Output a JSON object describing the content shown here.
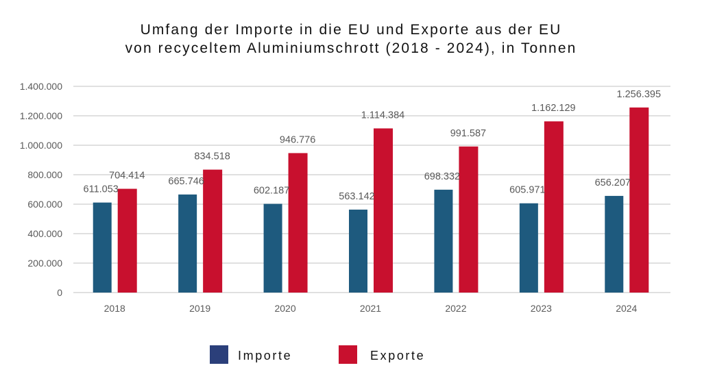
{
  "chart_data": {
    "type": "bar",
    "title_lines": [
      "Umfang der Importe in die EU und Exporte aus der EU",
      "von recyceltem Aluminiumschrott (2018 - 2024), in Tonnen"
    ],
    "xlabel": "",
    "ylabel": "",
    "categories": [
      "2018",
      "2019",
      "2020",
      "2021",
      "2022",
      "2023",
      "2024"
    ],
    "ylim": [
      0,
      1400000
    ],
    "yticks": [
      0,
      200000,
      400000,
      600000,
      800000,
      1000000,
      1200000,
      1400000
    ],
    "ytick_labels": [
      "0",
      "200.000",
      "400.000",
      "600.000",
      "800.000",
      "1.000.000",
      "1.200.000",
      "1.400.000"
    ],
    "grid": true,
    "legend_position": "bottom",
    "series": [
      {
        "name": "Importe",
        "color": "#1e5a7e",
        "legend_color": "#2b3f7a",
        "values": [
          611053,
          665746,
          602187,
          563142,
          698332,
          605971,
          656207
        ],
        "labels": [
          "611.053",
          "665.746",
          "602.187",
          "563.142",
          "698.332",
          "605.971",
          "656.207"
        ]
      },
      {
        "name": "Exporte",
        "color": "#c8102e",
        "legend_color": "#c8102e",
        "values": [
          704414,
          834518,
          946776,
          1114384,
          991587,
          1162129,
          1256395
        ],
        "labels": [
          "704.414",
          "834.518",
          "946.776",
          "1.114.384",
          "991.587",
          "1.162.129",
          "1.256.395"
        ]
      }
    ]
  }
}
